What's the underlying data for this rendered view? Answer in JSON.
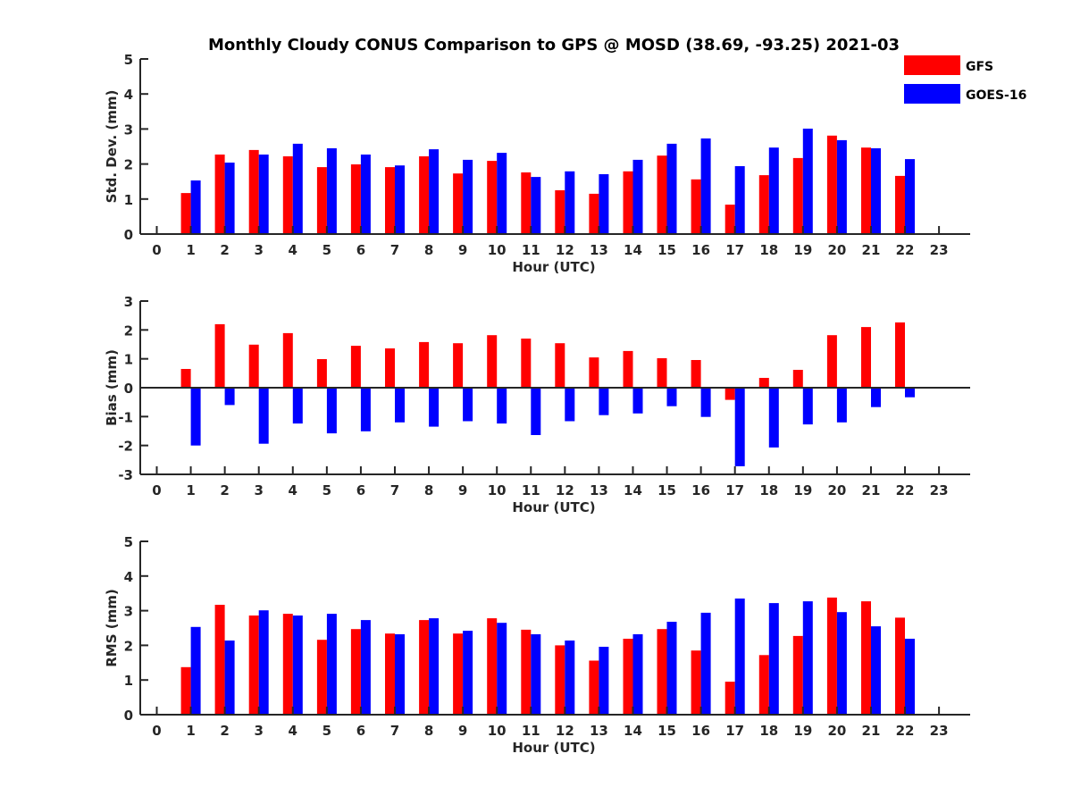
{
  "chart_data": [
    {
      "type": "bar",
      "title": "Monthly Cloudy CONUS Comparison to GPS @ MOSD (38.69, -93.25) 2021-03",
      "xlabel": "Hour (UTC)",
      "ylabel": "Std. Dev. (mm)",
      "ylim": [
        0,
        5
      ],
      "yticks": [
        0,
        1,
        2,
        3,
        4,
        5
      ],
      "xticks": [
        0,
        1,
        2,
        3,
        4,
        5,
        6,
        7,
        8,
        9,
        10,
        11,
        12,
        13,
        14,
        15,
        16,
        17,
        18,
        19,
        20,
        21,
        22,
        23
      ],
      "categories": [
        1,
        2,
        3,
        4,
        5,
        6,
        7,
        8,
        9,
        10,
        11,
        12,
        13,
        14,
        15,
        16,
        17,
        18,
        19,
        20,
        21,
        22
      ],
      "series": [
        {
          "name": "GFS",
          "color": "#ff0000",
          "values": [
            1.17,
            2.27,
            2.4,
            2.22,
            1.91,
            1.99,
            1.91,
            2.22,
            1.73,
            2.09,
            1.76,
            1.25,
            1.15,
            1.79,
            2.24,
            1.56,
            0.84,
            1.68,
            2.17,
            2.81,
            2.47,
            1.66
          ]
        },
        {
          "name": "GOES-16",
          "color": "#0000ff",
          "values": [
            1.53,
            2.04,
            2.27,
            2.58,
            2.45,
            2.27,
            1.96,
            2.42,
            2.12,
            2.32,
            1.63,
            1.79,
            1.71,
            2.12,
            2.58,
            2.73,
            1.94,
            2.47,
            3.01,
            2.68,
            2.45,
            2.14
          ]
        }
      ],
      "legend": "top-right",
      "grid": false
    },
    {
      "type": "bar",
      "title": "",
      "xlabel": "Hour (UTC)",
      "ylabel": "Bias (mm)",
      "ylim": [
        -3,
        3
      ],
      "yticks": [
        -3,
        -2,
        -1,
        0,
        1,
        2,
        3
      ],
      "xticks": [
        0,
        1,
        2,
        3,
        4,
        5,
        6,
        7,
        8,
        9,
        10,
        11,
        12,
        13,
        14,
        15,
        16,
        17,
        18,
        19,
        20,
        21,
        22,
        23
      ],
      "categories": [
        1,
        2,
        3,
        4,
        5,
        6,
        7,
        8,
        9,
        10,
        11,
        12,
        13,
        14,
        15,
        16,
        17,
        18,
        19,
        20,
        21,
        22
      ],
      "series": [
        {
          "name": "GFS",
          "color": "#ff0000",
          "values": [
            0.65,
            2.2,
            1.49,
            1.89,
            0.99,
            1.45,
            1.36,
            1.58,
            1.54,
            1.82,
            1.7,
            1.54,
            1.05,
            1.27,
            1.02,
            0.96,
            -0.42,
            0.34,
            0.62,
            1.82,
            2.1,
            2.26
          ]
        },
        {
          "name": "GOES-16",
          "color": "#0000ff",
          "values": [
            -2.0,
            -0.6,
            -1.94,
            -1.24,
            -1.58,
            -1.51,
            -1.2,
            -1.35,
            -1.16,
            -1.24,
            -1.64,
            -1.16,
            -0.95,
            -0.89,
            -0.64,
            -1.01,
            -2.72,
            -2.07,
            -1.27,
            -1.2,
            -0.67,
            -0.33
          ]
        }
      ],
      "grid": false
    },
    {
      "type": "bar",
      "title": "",
      "xlabel": "Hour (UTC)",
      "ylabel": "RMS (mm)",
      "ylim": [
        0,
        5
      ],
      "yticks": [
        0,
        1,
        2,
        3,
        4,
        5
      ],
      "xticks": [
        0,
        1,
        2,
        3,
        4,
        5,
        6,
        7,
        8,
        9,
        10,
        11,
        12,
        13,
        14,
        15,
        16,
        17,
        18,
        19,
        20,
        21,
        22,
        23
      ],
      "categories": [
        1,
        2,
        3,
        4,
        5,
        6,
        7,
        8,
        9,
        10,
        11,
        12,
        13,
        14,
        15,
        16,
        17,
        18,
        19,
        20,
        21,
        22
      ],
      "series": [
        {
          "name": "GFS",
          "color": "#ff0000",
          "values": [
            1.37,
            3.17,
            2.86,
            2.91,
            2.16,
            2.47,
            2.34,
            2.73,
            2.34,
            2.78,
            2.45,
            2.0,
            1.56,
            2.19,
            2.47,
            1.85,
            0.95,
            1.72,
            2.27,
            3.38,
            3.27,
            2.8
          ]
        },
        {
          "name": "GOES-16",
          "color": "#0000ff",
          "values": [
            2.53,
            2.14,
            3.01,
            2.86,
            2.91,
            2.73,
            2.32,
            2.78,
            2.42,
            2.65,
            2.32,
            2.14,
            1.96,
            2.32,
            2.68,
            2.94,
            3.35,
            3.22,
            3.27,
            2.96,
            2.55,
            2.19
          ]
        }
      ],
      "grid": false
    }
  ],
  "figure": {
    "title": "Monthly Cloudy CONUS Comparison to GPS @ MOSD (38.69, -93.25) 2021-03",
    "legend": [
      {
        "label": "GFS",
        "color": "#ff0000"
      },
      {
        "label": "GOES-16",
        "color": "#0000ff"
      }
    ]
  }
}
